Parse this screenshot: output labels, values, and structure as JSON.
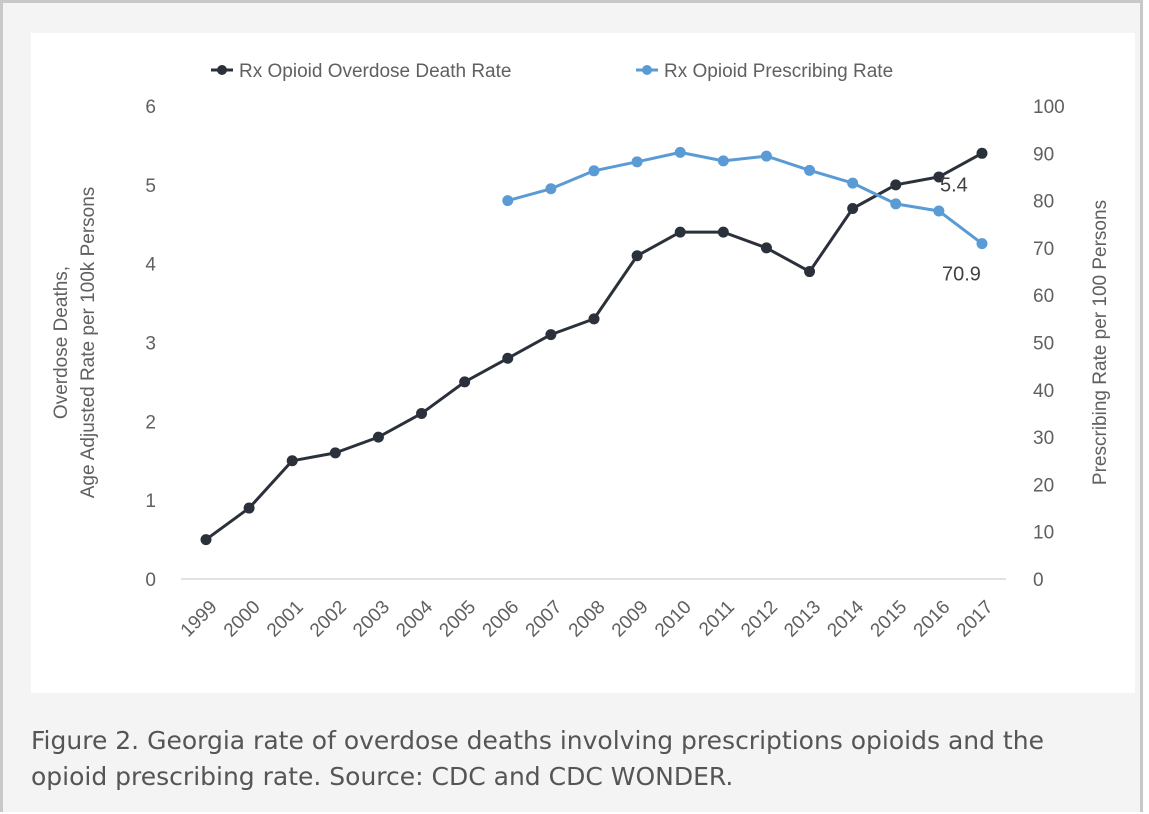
{
  "caption": {
    "text": "Figure 2. Georgia rate of overdose deaths involving prescriptions opioids and the opioid prescribing rate. Source: CDC and CDC WONDER."
  },
  "chart_data": {
    "type": "line",
    "title": "",
    "x": [
      "1999",
      "2000",
      "2001",
      "2002",
      "2003",
      "2004",
      "2005",
      "2006",
      "2007",
      "2008",
      "2009",
      "2010",
      "2011",
      "2012",
      "2013",
      "2014",
      "2015",
      "2016",
      "2017"
    ],
    "ylabel_left": [
      "Overdose Deaths,",
      "Age Adjusted Rate per 100k Persons"
    ],
    "ylabel_right": "Prescribing Rate per 100 Persons",
    "ylim_left": [
      0,
      6
    ],
    "yticks_left": [
      "0",
      "1",
      "2",
      "3",
      "4",
      "5",
      "6"
    ],
    "ylim_right": [
      0,
      100
    ],
    "yticks_right": [
      "0",
      "10",
      "20",
      "30",
      "40",
      "50",
      "60",
      "70",
      "80",
      "90",
      "100"
    ],
    "legend_position": "top",
    "grid": false,
    "series": [
      {
        "name": "Rx Opioid Overdose Death Rate",
        "axis": "left",
        "color": "#2b313b",
        "values": [
          0.5,
          0.9,
          1.5,
          1.6,
          1.8,
          2.1,
          2.5,
          2.8,
          3.1,
          3.3,
          4.1,
          4.4,
          4.4,
          4.2,
          3.9,
          4.7,
          5.0,
          5.1,
          5.4
        ],
        "end_label": "5.4"
      },
      {
        "name": "Rx Opioid Prescribing Rate",
        "axis": "right",
        "color": "#5b9bd5",
        "values": [
          null,
          null,
          null,
          null,
          null,
          null,
          null,
          80.0,
          82.5,
          86.3,
          88.2,
          90.2,
          88.4,
          89.4,
          86.4,
          83.7,
          79.3,
          77.8,
          70.9
        ],
        "end_label": "70.9"
      }
    ]
  }
}
